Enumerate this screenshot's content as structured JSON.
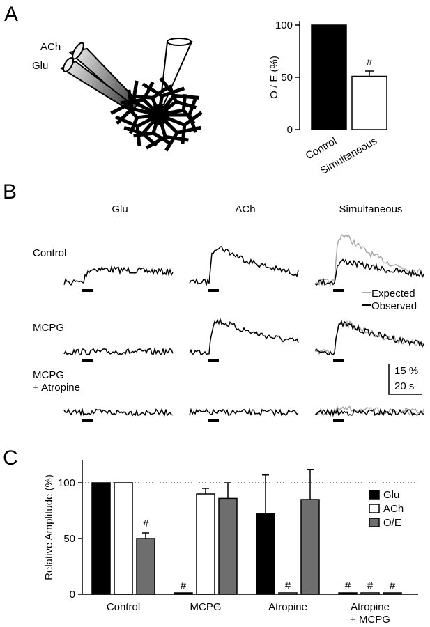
{
  "panels": {
    "a": "A",
    "b": "B",
    "c": "C"
  },
  "diagram": {
    "labels": [
      "ACh",
      "Glu"
    ]
  },
  "traces": {
    "columns": [
      "Glu",
      "ACh",
      "Simultaneous"
    ],
    "rows": [
      "Control",
      "MCPG",
      "MCPG\n+ Atropine"
    ],
    "legend": [
      "Expected",
      "Observed"
    ],
    "scale": [
      "15 %",
      "20 s"
    ]
  },
  "chart_data": [
    {
      "type": "bar",
      "ylabel": "O / E (%)",
      "categories": [
        "Control",
        "Simultaneous"
      ],
      "values": [
        100,
        51
      ],
      "errors": [
        0,
        5
      ],
      "colors": [
        "#000000",
        "#ffffff"
      ],
      "annotations": [
        null,
        "#"
      ],
      "ylim": [
        0,
        104
      ],
      "yticks": [
        0,
        50,
        100
      ]
    },
    {
      "type": "grouped-bar",
      "ylabel": "Relative Amplitude (%)",
      "categories": [
        "Control",
        "MCPG",
        "Atropine",
        "Atropine\n+ MCPG"
      ],
      "reference_line": 100,
      "ylim": [
        0,
        120
      ],
      "yticks": [
        0,
        50,
        100
      ],
      "series": [
        {
          "name": "Glu",
          "color": "#000000",
          "values": [
            100,
            0,
            72,
            0
          ],
          "errors": [
            0,
            0,
            35,
            0
          ],
          "annotations": [
            null,
            "#",
            null,
            "#"
          ]
        },
        {
          "name": "ACh",
          "color": "#ffffff",
          "values": [
            100,
            90,
            0,
            0
          ],
          "errors": [
            0,
            5,
            0,
            0
          ],
          "annotations": [
            null,
            null,
            "#",
            "#"
          ]
        },
        {
          "name": "O/E",
          "color": "#6e6e6e",
          "values": [
            50,
            86,
            85,
            0
          ],
          "errors": [
            5,
            14,
            27,
            0
          ],
          "annotations": [
            "#",
            null,
            null,
            "#"
          ]
        }
      ]
    }
  ]
}
